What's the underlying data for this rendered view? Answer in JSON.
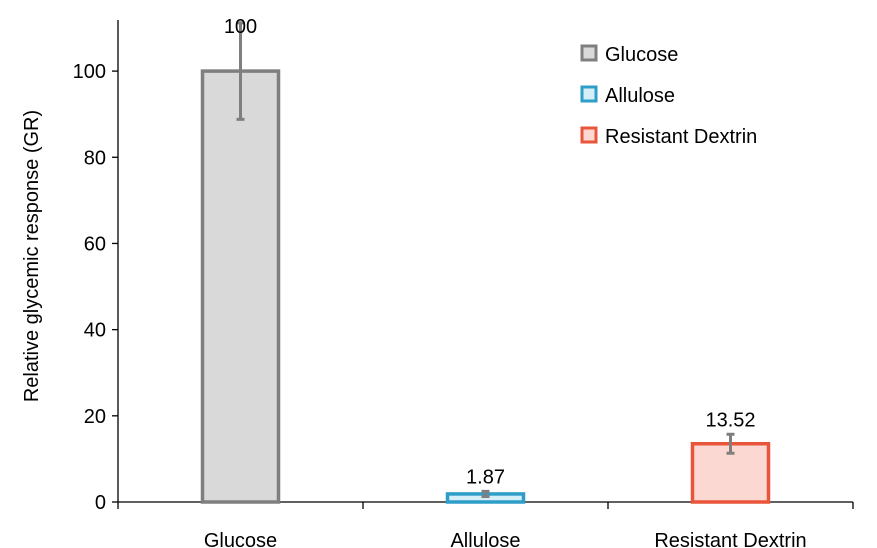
{
  "chart_data": {
    "type": "bar",
    "categories": [
      "Glucose",
      "Allulose",
      "Resistant Dextrin"
    ],
    "values": [
      100,
      1.87,
      13.52
    ],
    "value_labels": [
      "100",
      "1.87",
      "13.52"
    ],
    "error": [
      11.2,
      0.6,
      2.2
    ],
    "ylabel": "Relative glycemic response (GR)",
    "ylim": [
      0,
      110
    ],
    "yticks": [
      0,
      20,
      40,
      60,
      80,
      100
    ],
    "grid": false,
    "legend": {
      "position": "top-right",
      "entries": [
        "Glucose",
        "Allulose",
        "Resistant Dextrin"
      ]
    },
    "colors": {
      "stroke": [
        "#7f7f7f",
        "#2e9ec9",
        "#e9553a"
      ],
      "fill": [
        "#d9d9d9",
        "#d6eef8",
        "#fbd9d2"
      ],
      "error_bar": "#7f7f7f",
      "axis": "#000000"
    }
  }
}
